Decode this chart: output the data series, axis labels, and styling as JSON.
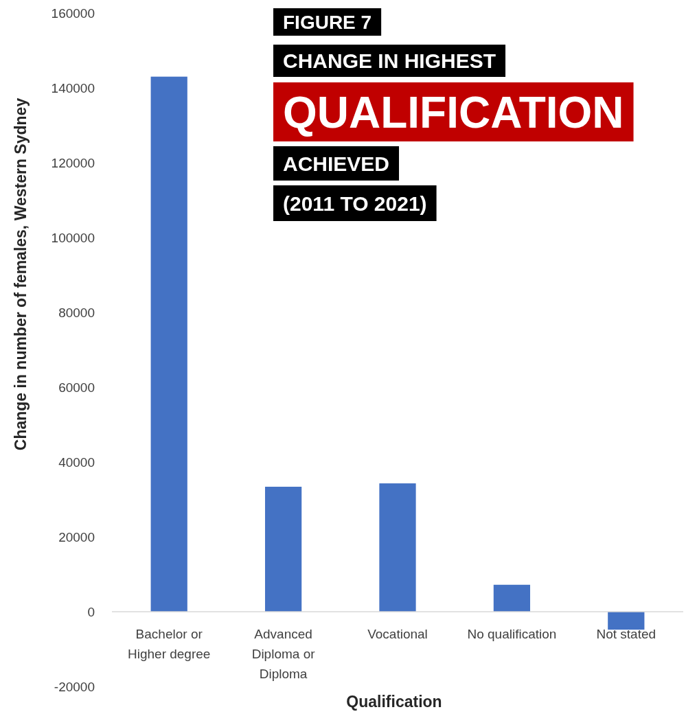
{
  "chart_data": {
    "type": "bar",
    "title": "FIGURE 7\nCHANGE IN HIGHEST\nQUALIFICATION\nACHIEVED\n(2011 TO 2021)",
    "xlabel": "Qualification",
    "ylabel": "Change in number of females, Western Sydney",
    "categories": [
      "Bachelor or Higher degree",
      "Advanced Diploma or Diploma",
      "Vocational",
      "No qualification",
      "Not stated"
    ],
    "values": [
      143000,
      33400,
      34300,
      7200,
      -4800
    ],
    "color": "#4472c4",
    "ylim": [
      -20000,
      160000
    ],
    "yticks": [
      -20000,
      0,
      20000,
      40000,
      60000,
      80000,
      100000,
      120000,
      140000,
      160000
    ],
    "grid": false
  }
}
